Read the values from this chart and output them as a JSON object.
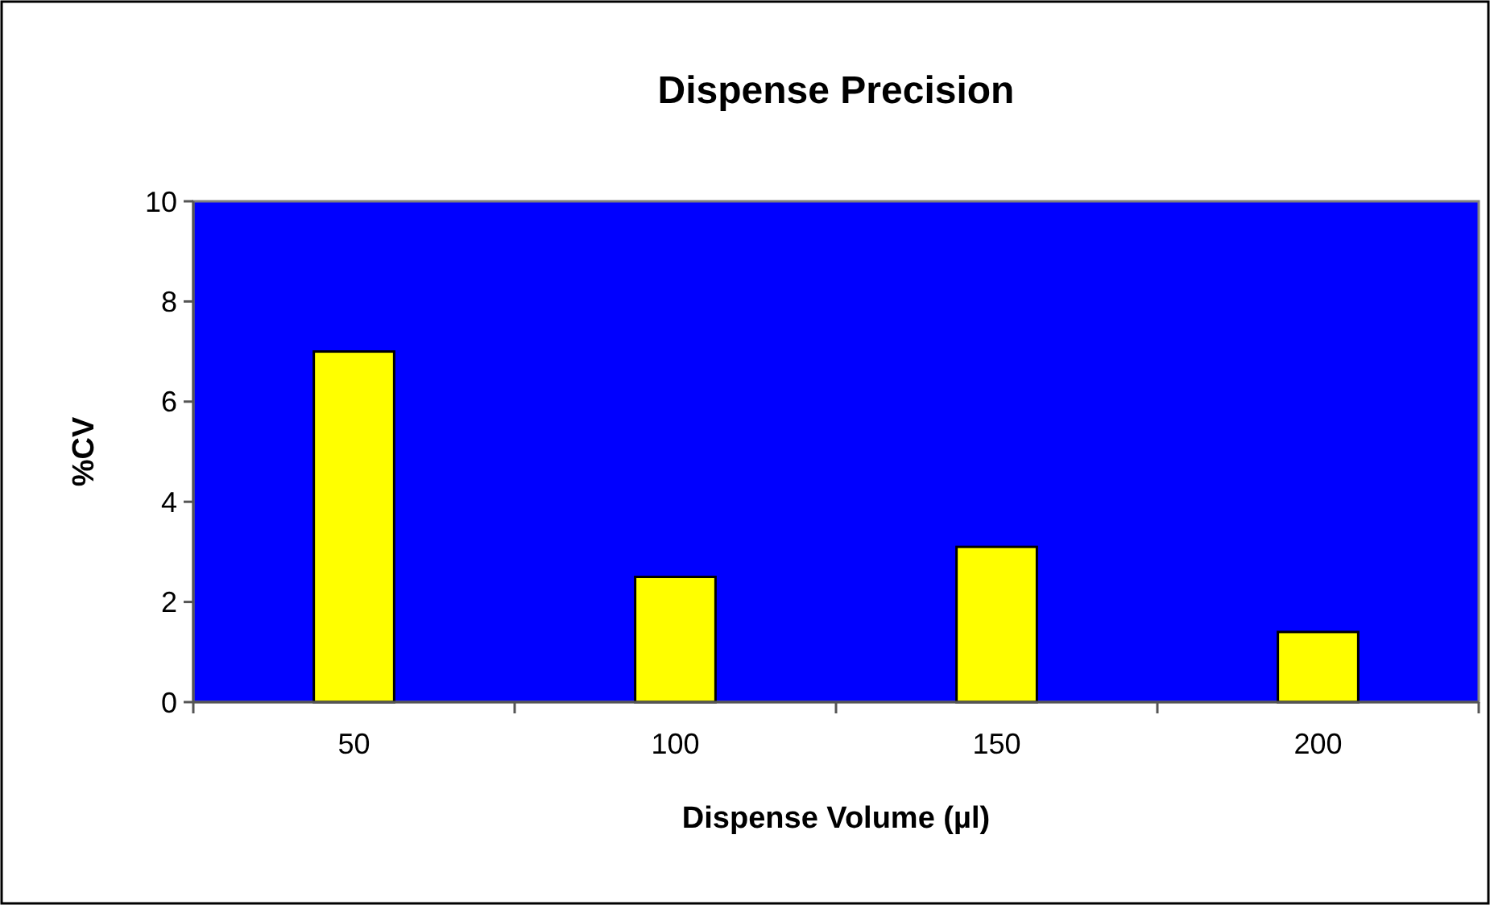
{
  "chart_data": {
    "type": "bar",
    "title": "Dispense Precision",
    "xlabel": "Dispense Volume (µl)",
    "ylabel": "%CV",
    "categories": [
      "50",
      "100",
      "150",
      "200"
    ],
    "values": [
      7.0,
      2.5,
      3.1,
      1.4
    ],
    "color": "#ffff00",
    "ylim": [
      0,
      10
    ],
    "yticks": [
      0,
      2,
      4,
      6,
      8,
      10
    ],
    "grid": false
  }
}
